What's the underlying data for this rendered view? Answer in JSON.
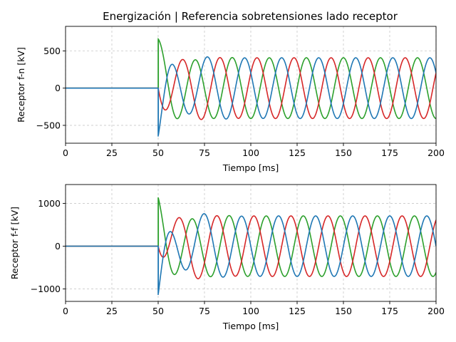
{
  "figure": {
    "title": "Energización | Referencia sobretensiones lado receptor"
  },
  "chart_data": [
    {
      "type": "line",
      "title": "Energización | Referencia sobretensiones lado receptor",
      "xlabel": "Tiempo [ms]",
      "ylabel": "Receptor f-n [kV]",
      "xlim": [
        0,
        200
      ],
      "ylim": [
        -740,
        830
      ],
      "xticks": [
        0,
        25,
        50,
        75,
        100,
        125,
        150,
        175,
        200
      ],
      "yticks": [
        -500,
        0,
        500
      ],
      "grid": true,
      "energization_time_ms": 50,
      "frequency_hz": 50,
      "steady_amplitude": 408,
      "series": [
        {
          "color": "#1f77b4",
          "phase_deg": -120,
          "initial": -650,
          "peak_after": 510
        },
        {
          "color": "#d62728",
          "phase_deg": 120,
          "initial": 0,
          "min_after": -600
        },
        {
          "color": "#2ca02c",
          "phase_deg": 0,
          "initial": 660,
          "peak_after": 765
        }
      ]
    },
    {
      "type": "line",
      "xlabel": "Tiempo [ms]",
      "ylabel": "Receptor f-f [kV]",
      "xlim": [
        0,
        200
      ],
      "ylim": [
        -1290,
        1440
      ],
      "xticks": [
        0,
        25,
        50,
        75,
        100,
        125,
        150,
        175,
        200
      ],
      "yticks": [
        -1000,
        0,
        1000
      ],
      "grid": true,
      "energization_time_ms": 50,
      "frequency_hz": 50,
      "steady_amplitude": 707,
      "series": [
        {
          "color": "#1f77b4",
          "phase_deg": -90,
          "initial": -1140,
          "peak_after": 880
        },
        {
          "color": "#d62728",
          "phase_deg": 150,
          "initial": 0,
          "min_after": -1040
        },
        {
          "color": "#2ca02c",
          "phase_deg": 30,
          "initial": 1140,
          "peak_after": 1310
        }
      ]
    }
  ]
}
